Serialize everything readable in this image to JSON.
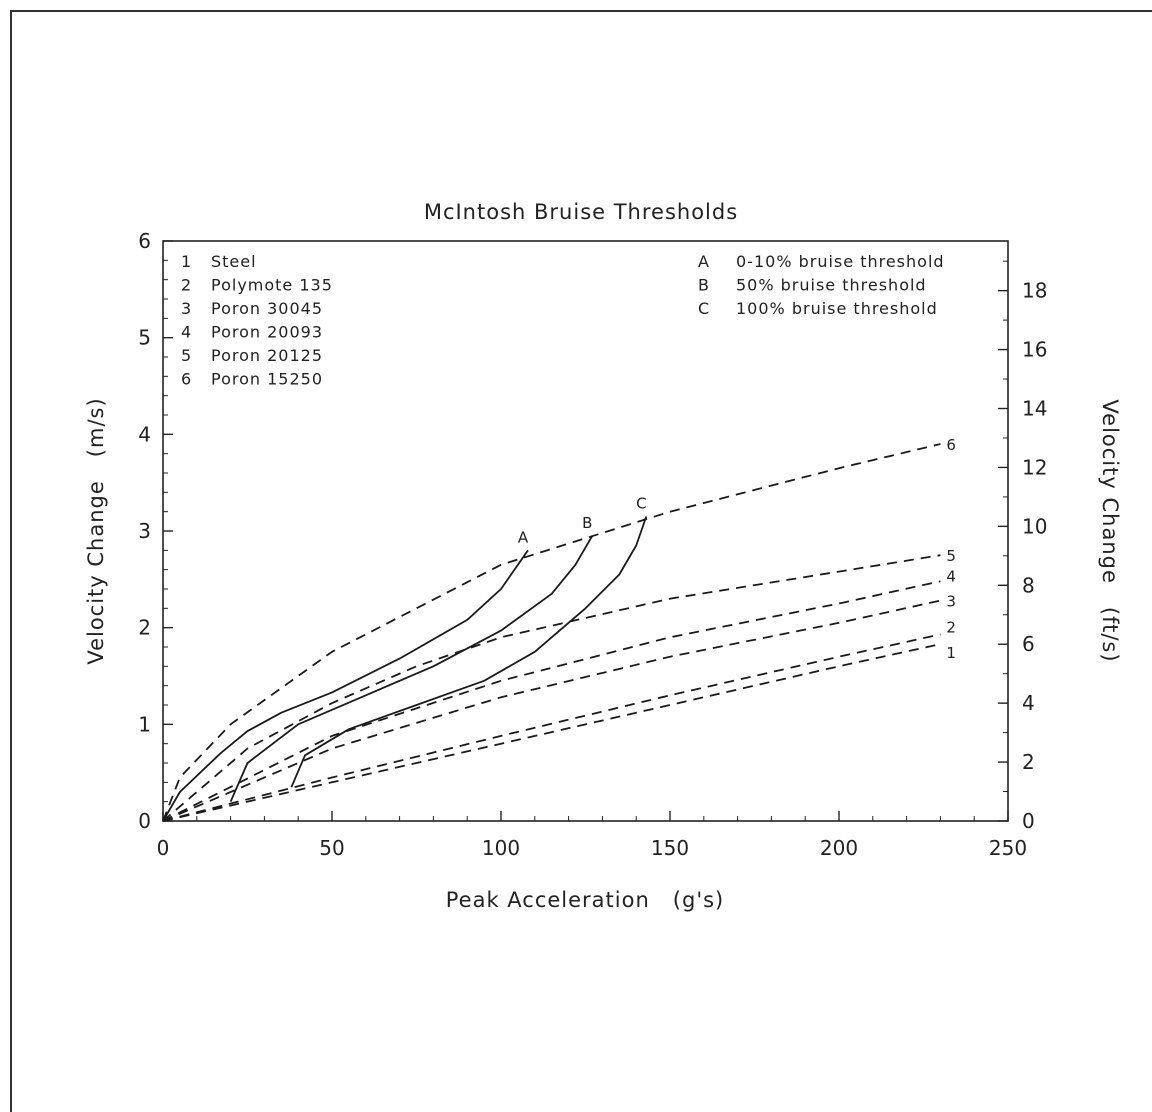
{
  "chart_data": {
    "type": "line",
    "title": "McIntosh Bruise Thresholds",
    "xlabel": "Peak Acceleration   (g's)",
    "ylabel": "Velocity Change   (m/s)",
    "y2label": "Velocity Change   (ft/s)",
    "xlim": [
      0,
      250
    ],
    "ylim": [
      0,
      6
    ],
    "y2lim": [
      0,
      19.685
    ],
    "xticks": [
      "0",
      "50",
      "100",
      "150",
      "200",
      "250"
    ],
    "yticks": [
      "0",
      "1",
      "2",
      "3",
      "4",
      "5",
      "6"
    ],
    "y2ticks": [
      "0",
      "2",
      "4",
      "6",
      "8",
      "10",
      "12",
      "14",
      "16",
      "18"
    ],
    "grid": false,
    "legend_left": [
      {
        "id": "1",
        "name": "Steel"
      },
      {
        "id": "2",
        "name": "Polymote 135"
      },
      {
        "id": "3",
        "name": "Poron 30045"
      },
      {
        "id": "4",
        "name": "Poron 20093"
      },
      {
        "id": "5",
        "name": "Poron 20125"
      },
      {
        "id": "6",
        "name": "Poron 15250"
      }
    ],
    "legend_right": [
      {
        "id": "A",
        "name": "0-10% bruise threshold"
      },
      {
        "id": "B",
        "name": "50% bruise threshold"
      },
      {
        "id": "C",
        "name": "100% bruise threshold"
      }
    ],
    "series": [
      {
        "id": "1",
        "style": "dashed",
        "x": [
          0,
          50,
          100,
          150,
          200,
          230
        ],
        "y": [
          0,
          0.4,
          0.8,
          1.2,
          1.6,
          1.83
        ]
      },
      {
        "id": "2",
        "style": "dashed",
        "x": [
          0,
          50,
          100,
          150,
          200,
          230
        ],
        "y": [
          0,
          0.45,
          0.88,
          1.3,
          1.7,
          1.93
        ]
      },
      {
        "id": "3",
        "style": "dashed",
        "x": [
          0,
          50,
          100,
          150,
          200,
          230
        ],
        "y": [
          0,
          0.75,
          1.28,
          1.7,
          2.05,
          2.28
        ]
      },
      {
        "id": "4",
        "style": "dashed",
        "x": [
          0,
          50,
          100,
          150,
          200,
          230
        ],
        "y": [
          0,
          0.88,
          1.45,
          1.9,
          2.25,
          2.48
        ]
      },
      {
        "id": "5",
        "style": "dashed",
        "x": [
          0,
          25,
          50,
          75,
          100,
          150,
          200,
          230
        ],
        "y": [
          0,
          0.75,
          1.22,
          1.6,
          1.9,
          2.3,
          2.58,
          2.75
        ]
      },
      {
        "id": "6",
        "style": "dashed",
        "x": [
          0,
          5,
          20,
          50,
          100,
          150,
          200,
          230
        ],
        "y": [
          0,
          0.45,
          1.0,
          1.75,
          2.65,
          3.2,
          3.65,
          3.9
        ]
      },
      {
        "id": "A",
        "style": "solid",
        "x": [
          0,
          5,
          17,
          25,
          35,
          50,
          70,
          90,
          100,
          108
        ],
        "y": [
          0,
          0.3,
          0.7,
          0.93,
          1.12,
          1.33,
          1.68,
          2.08,
          2.4,
          2.8
        ]
      },
      {
        "id": "B",
        "style": "solid",
        "x": [
          20,
          25,
          40,
          60,
          80,
          100,
          115,
          122,
          127
        ],
        "y": [
          0.2,
          0.6,
          1.0,
          1.3,
          1.6,
          1.97,
          2.35,
          2.65,
          2.95
        ]
      },
      {
        "id": "C",
        "style": "solid",
        "x": [
          38,
          42,
          55,
          75,
          95,
          110,
          125,
          135,
          140,
          143
        ],
        "y": [
          0.35,
          0.68,
          0.95,
          1.2,
          1.45,
          1.75,
          2.2,
          2.55,
          2.85,
          3.15
        ]
      }
    ],
    "end_labels": [
      "1",
      "2",
      "3",
      "4",
      "5",
      "6"
    ],
    "threshold_labels": [
      "A",
      "B",
      "C"
    ]
  }
}
